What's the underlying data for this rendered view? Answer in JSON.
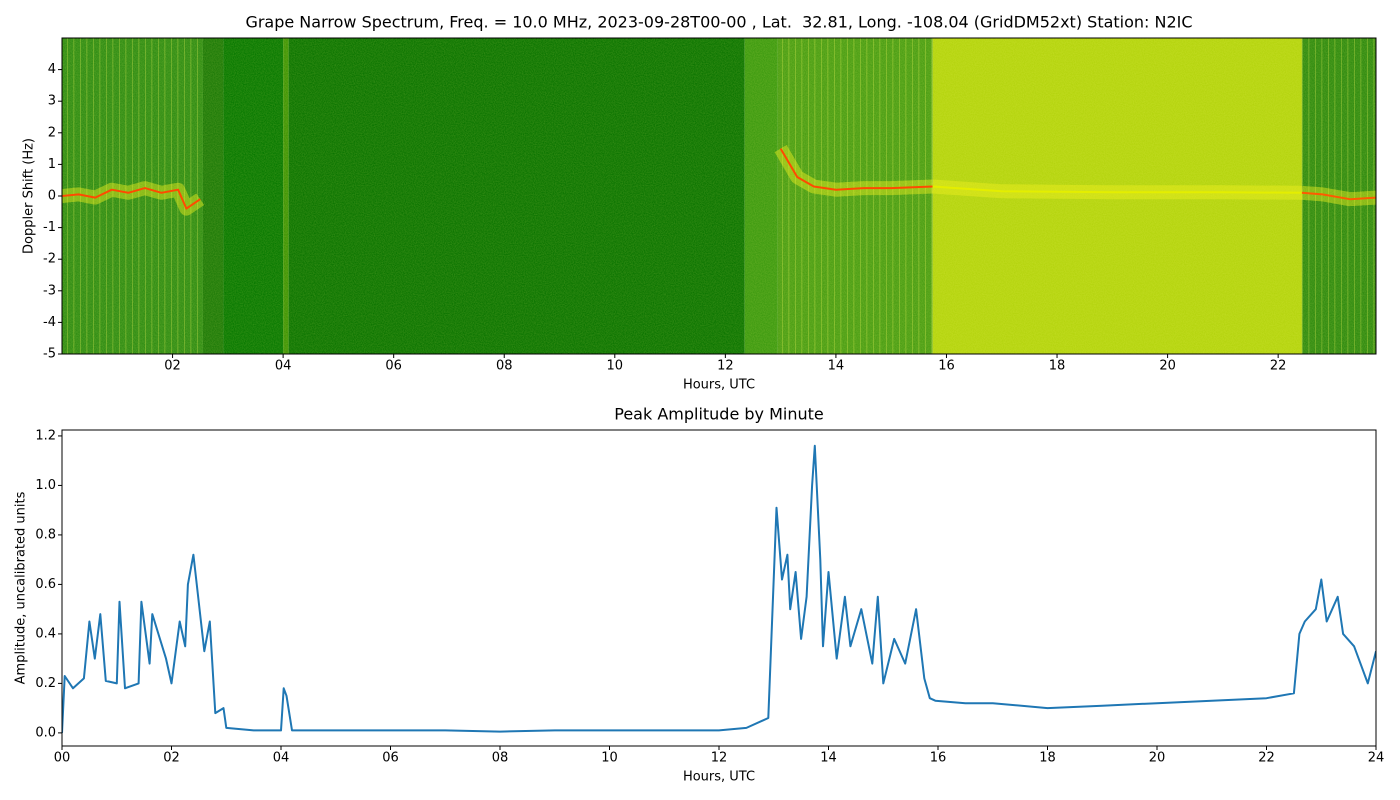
{
  "chart_data": [
    {
      "type": "heatmap",
      "title": "Grape Narrow Spectrum, Freq. = 10.0 MHz, 2023-09-28T00-00 , Lat.  32.81, Long. -108.04 (GridDM52xt) Station: N2IC",
      "x_label": "Hours, UTC",
      "y_label": "Doppler Shift (Hz)",
      "xlim": [
        0,
        23.77
      ],
      "ylim": [
        -5,
        5
      ],
      "xticks": [
        {
          "value": 2,
          "label": "02"
        },
        {
          "value": 4,
          "label": "04"
        },
        {
          "value": 6,
          "label": "06"
        },
        {
          "value": 8,
          "label": "08"
        },
        {
          "value": 10,
          "label": "10"
        },
        {
          "value": 12,
          "label": "12"
        },
        {
          "value": 14,
          "label": "14"
        },
        {
          "value": 16,
          "label": "16"
        },
        {
          "value": 18,
          "label": "18"
        },
        {
          "value": 20,
          "label": "20"
        },
        {
          "value": 22,
          "label": "22"
        }
      ],
      "yticks": [
        -5,
        -4,
        -3,
        -2,
        -1,
        0,
        1,
        2,
        3,
        4
      ],
      "bands": [
        {
          "x": [
            0,
            2.55
          ],
          "color": "#2f8d14"
        },
        {
          "x": [
            2.55,
            2.92
          ],
          "color": "#1c7a08"
        },
        {
          "x": [
            2.92,
            4.0
          ],
          "color": "#067800"
        },
        {
          "x": [
            4.0,
            4.1
          ],
          "color": "#3f9406"
        },
        {
          "x": [
            4.1,
            12.35
          ],
          "color": "#0a7400"
        },
        {
          "x": [
            12.35,
            12.95
          ],
          "color": "#3c9a10"
        },
        {
          "x": [
            12.95,
            15.75
          ],
          "color": "#4a9e14"
        },
        {
          "x": [
            15.75,
            22.43
          ],
          "color": "#b4d40e"
        },
        {
          "x": [
            22.43,
            23.77
          ],
          "color": "#2f8b10"
        }
      ],
      "series": [
        {
          "color": "#ff4a00",
          "x": [
            0,
            0.3,
            0.6,
            0.9,
            1.2,
            1.5,
            1.8,
            2.1,
            2.25,
            2.5,
            2.6,
            13.0,
            13.1,
            13.3,
            13.6,
            14.0,
            14.5,
            15.0,
            15.75
          ],
          "values": [
            0,
            0.05,
            -0.05,
            0.2,
            0.1,
            0.25,
            0.1,
            0.2,
            -0.4,
            -0.1,
            null,
            1.5,
            1.2,
            0.6,
            0.3,
            0.2,
            0.25,
            0.25,
            0.3
          ]
        },
        {
          "color": "#e4ee00",
          "x": [
            15.75,
            17,
            19,
            21,
            22.43
          ],
          "values": [
            0.3,
            0.15,
            0.12,
            0.12,
            0.1
          ]
        },
        {
          "color": "#ff5a00",
          "x": [
            22.43,
            22.8,
            23.3,
            23.77
          ],
          "values": [
            0.1,
            0.05,
            -0.1,
            -0.05
          ]
        }
      ]
    },
    {
      "type": "line",
      "title": "Peak Amplitude by Minute",
      "x_label": "Hours, UTC",
      "y_label": "Amplitude, uncalibrated units",
      "xlim": [
        0,
        24
      ],
      "ylim": [
        -0.053,
        1.224
      ],
      "xticks": [
        {
          "value": 0,
          "label": "00"
        },
        {
          "value": 2,
          "label": "02"
        },
        {
          "value": 4,
          "label": "04"
        },
        {
          "value": 6,
          "label": "06"
        },
        {
          "value": 8,
          "label": "08"
        },
        {
          "value": 10,
          "label": "10"
        },
        {
          "value": 12,
          "label": "12"
        },
        {
          "value": 14,
          "label": "14"
        },
        {
          "value": 16,
          "label": "16"
        },
        {
          "value": 18,
          "label": "18"
        },
        {
          "value": 20,
          "label": "20"
        },
        {
          "value": 22,
          "label": "22"
        },
        {
          "value": 24,
          "label": "24"
        }
      ],
      "yticks": [
        {
          "value": 0,
          "label": "0.0"
        },
        {
          "value": 0.2,
          "label": "0.2"
        },
        {
          "value": 0.4,
          "label": "0.4"
        },
        {
          "value": 0.6,
          "label": "0.6"
        },
        {
          "value": 0.8,
          "label": "0.8"
        },
        {
          "value": 1.0,
          "label": "1.0"
        },
        {
          "value": 1.2,
          "label": "1.2"
        }
      ],
      "series": [
        {
          "color": "#1f77b4",
          "x": [
            0,
            0.05,
            0.2,
            0.4,
            0.5,
            0.6,
            0.7,
            0.8,
            1.0,
            1.05,
            1.15,
            1.4,
            1.45,
            1.6,
            1.65,
            1.9,
            2.0,
            2.15,
            2.25,
            2.3,
            2.4,
            2.6,
            2.7,
            2.8,
            2.95,
            3.0,
            3.5,
            4.0,
            4.05,
            4.1,
            4.2,
            5,
            6,
            7,
            8,
            9,
            10,
            11,
            12,
            12.5,
            12.9,
            13.05,
            13.15,
            13.25,
            13.3,
            13.4,
            13.5,
            13.6,
            13.7,
            13.75,
            13.85,
            13.9,
            14.0,
            14.15,
            14.3,
            14.4,
            14.6,
            14.8,
            14.9,
            15.0,
            15.2,
            15.4,
            15.6,
            15.75,
            15.85,
            15.95,
            16.5,
            17,
            18,
            19,
            20,
            21,
            22,
            22.5,
            22.6,
            22.7,
            22.9,
            23.0,
            23.1,
            23.3,
            23.4,
            23.6,
            23.85,
            24
          ],
          "values": [
            0.0,
            0.23,
            0.18,
            0.22,
            0.45,
            0.3,
            0.48,
            0.21,
            0.2,
            0.53,
            0.18,
            0.2,
            0.53,
            0.28,
            0.48,
            0.3,
            0.2,
            0.45,
            0.35,
            0.6,
            0.72,
            0.33,
            0.45,
            0.08,
            0.1,
            0.02,
            0.01,
            0.01,
            0.18,
            0.15,
            0.01,
            0.01,
            0.01,
            0.01,
            0.005,
            0.01,
            0.01,
            0.01,
            0.01,
            0.02,
            0.06,
            0.91,
            0.62,
            0.72,
            0.5,
            0.65,
            0.38,
            0.55,
            1.0,
            1.16,
            0.7,
            0.35,
            0.65,
            0.3,
            0.55,
            0.35,
            0.5,
            0.28,
            0.55,
            0.2,
            0.38,
            0.28,
            0.5,
            0.22,
            0.14,
            0.13,
            0.12,
            0.12,
            0.1,
            0.11,
            0.12,
            0.13,
            0.14,
            0.16,
            0.4,
            0.45,
            0.5,
            0.62,
            0.45,
            0.55,
            0.4,
            0.35,
            0.2,
            0.33
          ]
        }
      ]
    }
  ]
}
